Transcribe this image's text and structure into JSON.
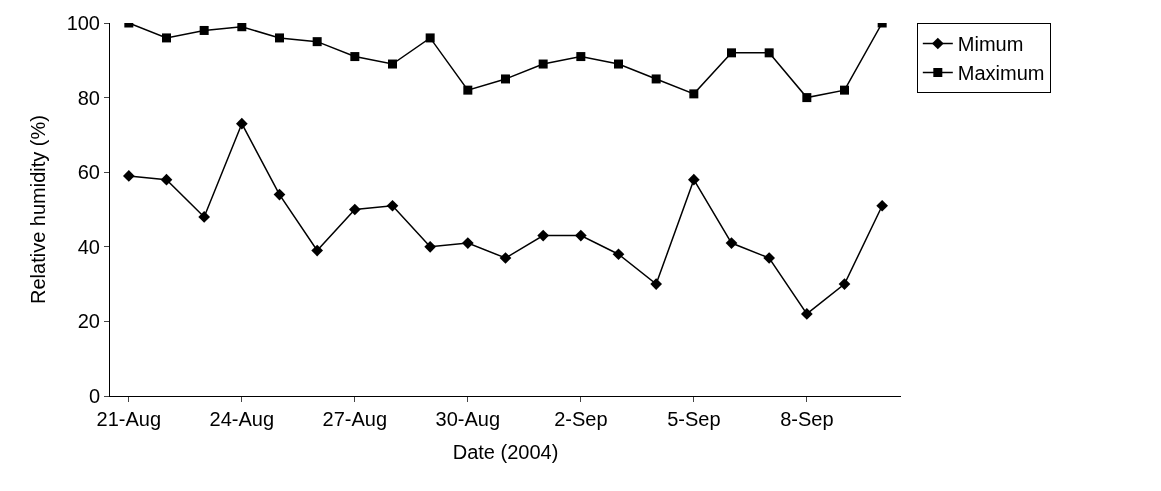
{
  "chart_data": {
    "type": "line",
    "xlabel": "Date (2004)",
    "ylabel": "Relative humidity (%)",
    "categories": [
      "21-Aug",
      null,
      null,
      "24-Aug",
      null,
      null,
      "27-Aug",
      null,
      null,
      "30-Aug",
      null,
      null,
      "2-Sep",
      null,
      null,
      "5-Sep",
      null,
      null,
      "8-Sep",
      null,
      null
    ],
    "series": [
      {
        "name": "Mimum",
        "color": "#000000",
        "marker": "diamond",
        "values": [
          59,
          58,
          48,
          73,
          54,
          39,
          50,
          51,
          40,
          41,
          37,
          43,
          43,
          38,
          30,
          58,
          41,
          37,
          22,
          30,
          51
        ]
      },
      {
        "name": "Maximum",
        "color": "#000000",
        "marker": "square",
        "values": [
          100,
          96,
          98,
          99,
          96,
          95,
          91,
          89,
          96,
          82,
          85,
          89,
          91,
          89,
          85,
          81,
          92,
          92,
          80,
          82,
          100
        ]
      }
    ],
    "ylim": [
      0,
      100
    ],
    "yticks": [
      0,
      20,
      40,
      60,
      80,
      100
    ],
    "grid": false,
    "legend": "top right",
    "line_style": "solid"
  }
}
